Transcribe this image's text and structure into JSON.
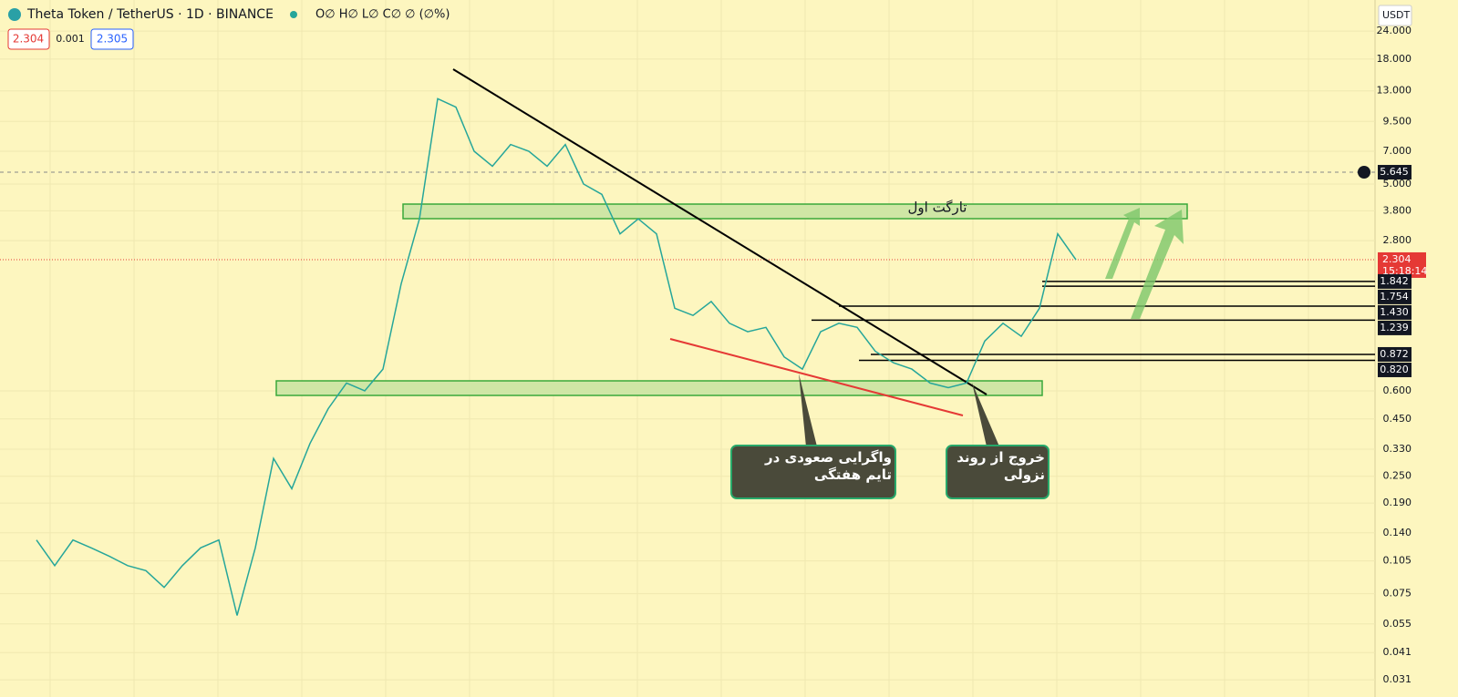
{
  "header": {
    "symbol": "Theta Token / TetherUS · 1D · BINANCE",
    "ohlc": "O∅ H∅ L∅ C∅ ∅ (∅%)",
    "bid": "2.304",
    "spread": "0.001",
    "ask": "2.305",
    "currency": "USDT"
  },
  "chart_data": {
    "type": "line",
    "log_scale": true,
    "color": "#26a69a",
    "categories": [
      null,
      null,
      null,
      null,
      null,
      null,
      null,
      null,
      null,
      null,
      null,
      null,
      null,
      null,
      null,
      null,
      null,
      null,
      null,
      null,
      null,
      null,
      null,
      null,
      null,
      null,
      null,
      null,
      null,
      null,
      null,
      null,
      null,
      null,
      null,
      null,
      null,
      null,
      null,
      null,
      null,
      null,
      null,
      null,
      null,
      null,
      null,
      null,
      null,
      null,
      null,
      null,
      null,
      null,
      null,
      null,
      null,
      null
    ],
    "values": [
      0.13,
      0.1,
      0.13,
      0.12,
      0.11,
      0.1,
      0.095,
      0.08,
      0.1,
      0.12,
      0.13,
      0.06,
      0.12,
      0.3,
      0.22,
      0.35,
      0.5,
      0.65,
      0.6,
      0.75,
      1.8,
      3.5,
      12,
      11,
      7,
      6,
      7.5,
      7,
      6,
      7.5,
      5,
      4.5,
      3,
      3.5,
      3,
      1.4,
      1.3,
      1.5,
      1.2,
      1.1,
      1.15,
      0.85,
      0.75,
      1.1,
      1.2,
      1.15,
      0.9,
      0.8,
      0.75,
      0.65,
      0.62,
      0.65,
      1.0,
      1.2,
      1.05,
      1.4,
      3.0,
      2.3
    ],
    "ylim": [
      0.026,
      33
    ],
    "yticks": [
      {
        "value": 24,
        "label": "24.000"
      },
      {
        "value": 18,
        "label": "18.000"
      },
      {
        "value": 13,
        "label": "13.000"
      },
      {
        "value": 9.5,
        "label": "9.500"
      },
      {
        "value": 7,
        "label": "7.000"
      },
      {
        "value": 5,
        "label": "5.000"
      },
      {
        "value": 3.8,
        "label": "3.800"
      },
      {
        "value": 2.8,
        "label": "2.800"
      },
      {
        "value": 0.6,
        "label": "0.600"
      },
      {
        "value": 0.45,
        "label": "0.450"
      },
      {
        "value": 0.33,
        "label": "0.330"
      },
      {
        "value": 0.25,
        "label": "0.250"
      },
      {
        "value": 0.19,
        "label": "0.190"
      },
      {
        "value": 0.14,
        "label": "0.140"
      },
      {
        "value": 0.105,
        "label": "0.105"
      },
      {
        "value": 0.075,
        "label": "0.075"
      },
      {
        "value": 0.055,
        "label": "0.055"
      },
      {
        "value": 0.041,
        "label": "0.041"
      },
      {
        "value": 0.031,
        "label": "0.031"
      }
    ],
    "marked_price": {
      "value": 5.645,
      "label": "5.645"
    },
    "last_price": {
      "value": 2.304,
      "label": "2.304",
      "countdown": "15:18:14"
    },
    "levels": [
      {
        "value": 1.842,
        "label": "1.842"
      },
      {
        "value": 1.754,
        "label": "1.754"
      },
      {
        "value": 1.43,
        "label": "1.430"
      },
      {
        "value": 1.239,
        "label": "1.239"
      },
      {
        "value": 0.872,
        "label": "0.872"
      },
      {
        "value": 0.82,
        "label": "0.820"
      }
    ],
    "annotations": {
      "target": "تارگت اول",
      "divergence": "واگرایی صعودی در تایم هفتگی",
      "breakout": "خروج از روند نزولی"
    }
  }
}
